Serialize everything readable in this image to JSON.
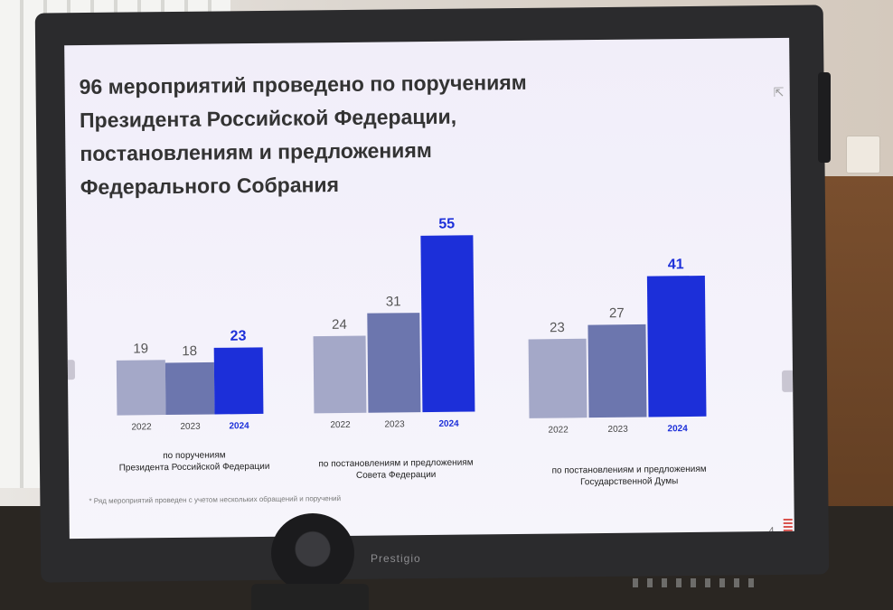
{
  "slide": {
    "title_lines": [
      "96 мероприятий проведено по поручениям",
      "Президента Российской Федерации,",
      "постановлениям и предложениям",
      "Федерального Собрания"
    ],
    "footnote": "* Ряд мероприятий проведен с учетом нескольких обращений и поручений",
    "page_number": "4"
  },
  "device": {
    "brand": "Prestigio"
  },
  "colors": {
    "bar_2022": "#a4a8c8",
    "bar_2023": "#6c76ae",
    "bar_2024": "#1c2fd9",
    "highlight_text": "#1c2fd9"
  },
  "chart_data": [
    {
      "type": "bar",
      "categories": [
        "2022",
        "2023",
        "2024"
      ],
      "values": [
        19,
        18,
        23
      ],
      "caption_lines": [
        "по поручениям",
        "Президента Российской Федерации"
      ]
    },
    {
      "type": "bar",
      "categories": [
        "2022",
        "2023",
        "2024"
      ],
      "values": [
        24,
        31,
        55
      ],
      "caption_lines": [
        "по постановлениям и предложениям",
        "Совета Федерации"
      ]
    },
    {
      "type": "bar",
      "categories": [
        "2022",
        "2023",
        "2024"
      ],
      "values": [
        23,
        27,
        41
      ],
      "caption_lines": [
        "по постановлениям и предложениям",
        "Государственной Думы"
      ]
    }
  ]
}
